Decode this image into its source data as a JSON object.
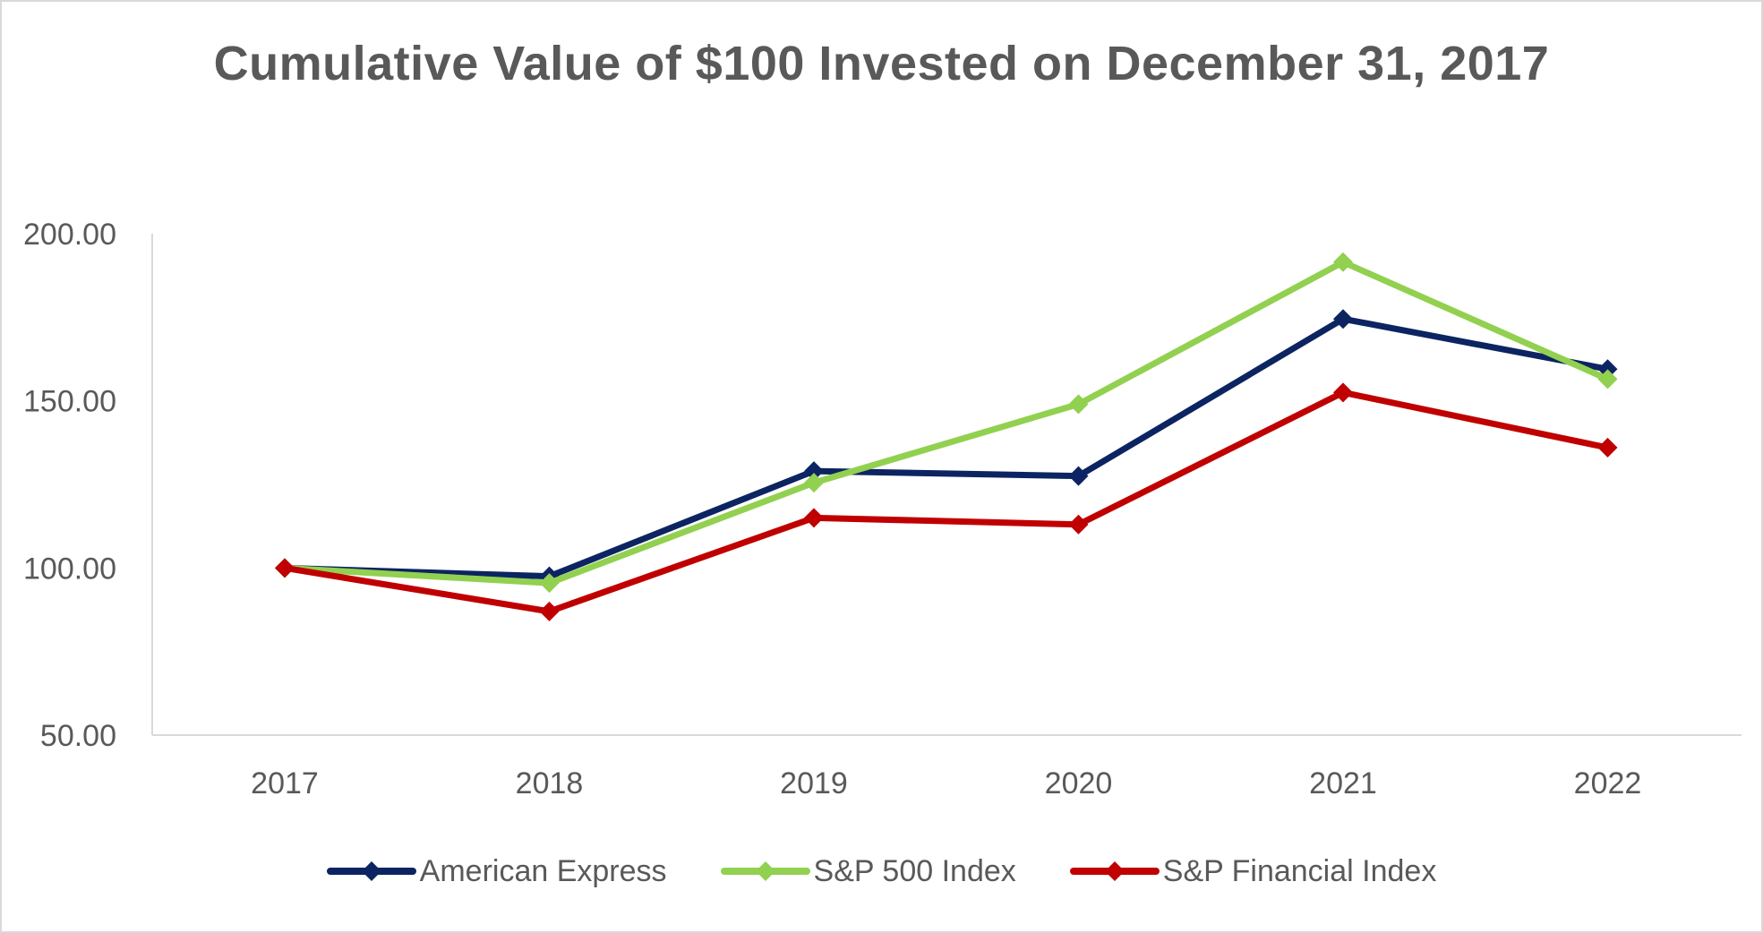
{
  "chart_data": {
    "type": "line",
    "title": "Cumulative Value of $100 Invested on December 31, 2017",
    "categories": [
      "2017",
      "2018",
      "2019",
      "2020",
      "2021",
      "2022"
    ],
    "ylim": [
      50,
      200
    ],
    "yticks": [
      "50.00",
      "100.00",
      "150.00",
      "200.00"
    ],
    "ytick_values": [
      50,
      100,
      150,
      200
    ],
    "xlabel": "",
    "ylabel": "",
    "legend_position": "bottom",
    "series": [
      {
        "name": "American Express",
        "color": "#0c2461",
        "values": [
          100,
          97.5,
          129,
          127.5,
          174.5,
          159.5
        ]
      },
      {
        "name": "S&P 500 Index",
        "color": "#92d050",
        "values": [
          100,
          95.5,
          125.5,
          149,
          191.5,
          156.5
        ]
      },
      {
        "name": "S&P Financial Index",
        "color": "#c00000",
        "values": [
          100,
          87,
          115,
          113,
          152.5,
          136
        ]
      }
    ]
  }
}
